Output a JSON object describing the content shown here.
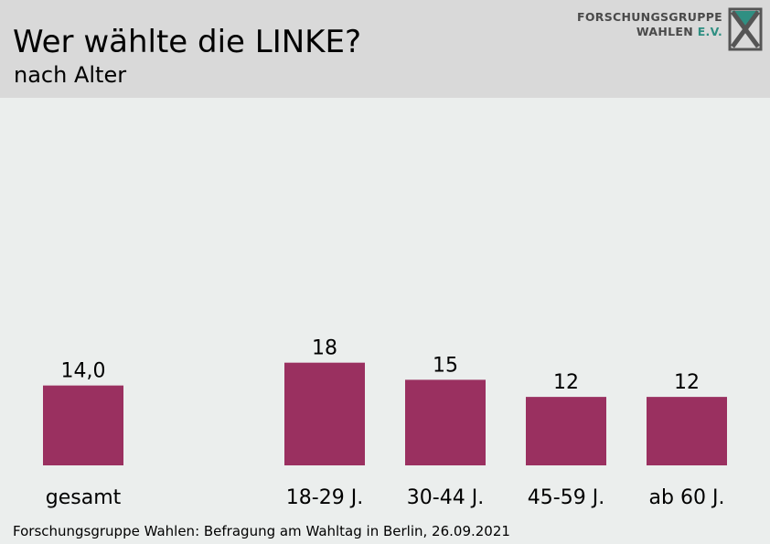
{
  "header": {
    "title": "Wer wählte die LINKE?",
    "subtitle": "nach Alter",
    "logo_line1": "FORSCHUNGSGRUPPE",
    "logo_line2_a": "WAHLEN",
    "logo_line2_b": "E.V."
  },
  "footer": {
    "source": "Forschungsgruppe Wahlen: Befragung am Wahltag in Berlin, 26.09.2021"
  },
  "colors": {
    "bar": "#9a3060",
    "header_bg": "#d9d9d9",
    "plot_bg": "#ebeeed",
    "logo_accent": "#2f8f82"
  },
  "chart_data": {
    "type": "bar",
    "categories": [
      "gesamt",
      "18-29 J.",
      "30-44 J.",
      "45-59 J.",
      "ab 60 J."
    ],
    "values": [
      14.0,
      18,
      15,
      12,
      12
    ],
    "value_labels": [
      "14,0",
      "18",
      "15",
      "12",
      "12"
    ],
    "title": "Wer wählte die LINKE?",
    "subtitle": "nach Alter",
    "ylim": [
      0,
      70
    ],
    "grid": false,
    "legend": "none"
  }
}
